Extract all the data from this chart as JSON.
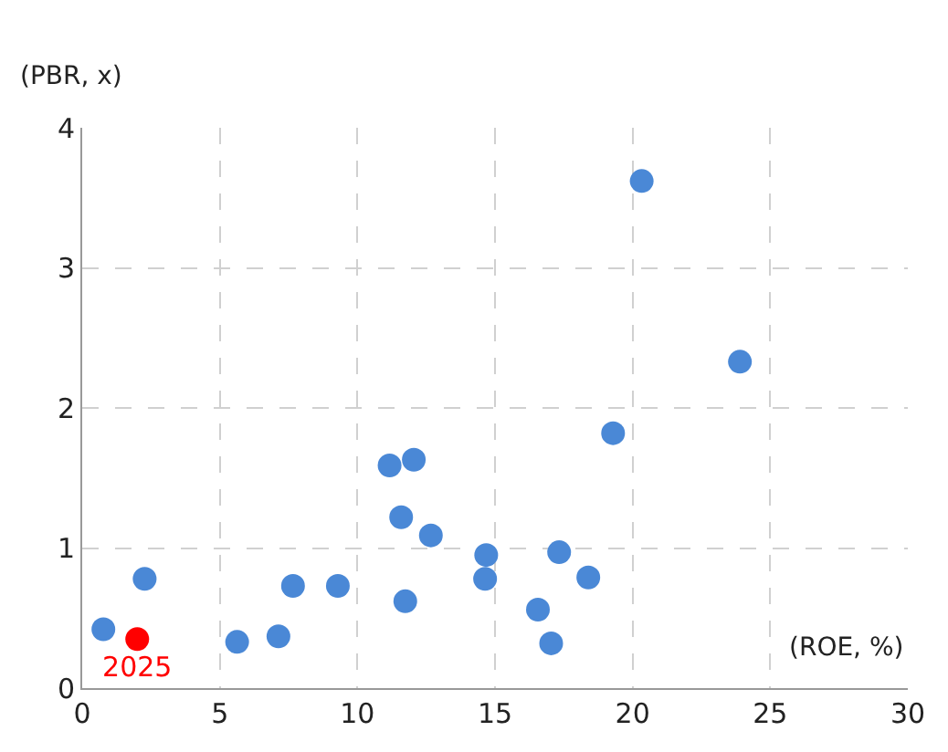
{
  "chart_data": {
    "type": "scatter",
    "xlabel": "(ROE, %)",
    "ylabel": "(PBR, x)",
    "xlim": [
      0,
      30
    ],
    "xticks": [
      0,
      5,
      10,
      15,
      20,
      25,
      30
    ],
    "ylim": [
      0,
      4
    ],
    "yticks": [
      0,
      1,
      2,
      3,
      4
    ],
    "grid": true,
    "legend": false,
    "marker": "circle",
    "series": [
      {
        "color": "#4a88d6",
        "x": [
          0.77,
          2.27,
          5.63,
          7.13,
          7.66,
          9.29,
          11.17,
          12.05,
          11.59,
          12.67,
          11.74,
          14.68,
          14.64,
          17.33,
          18.39,
          16.56,
          17.04,
          19.29,
          20.33,
          23.9
        ],
        "values": [
          0.42,
          0.78,
          0.33,
          0.37,
          0.73,
          0.73,
          1.59,
          1.63,
          1.22,
          1.09,
          0.62,
          0.95,
          0.78,
          0.97,
          0.79,
          0.56,
          0.32,
          1.82,
          3.62,
          2.33
        ]
      },
      {
        "name": "2025",
        "color": "#ff0000",
        "x": [
          2.0
        ],
        "values": [
          0.35
        ]
      }
    ]
  }
}
